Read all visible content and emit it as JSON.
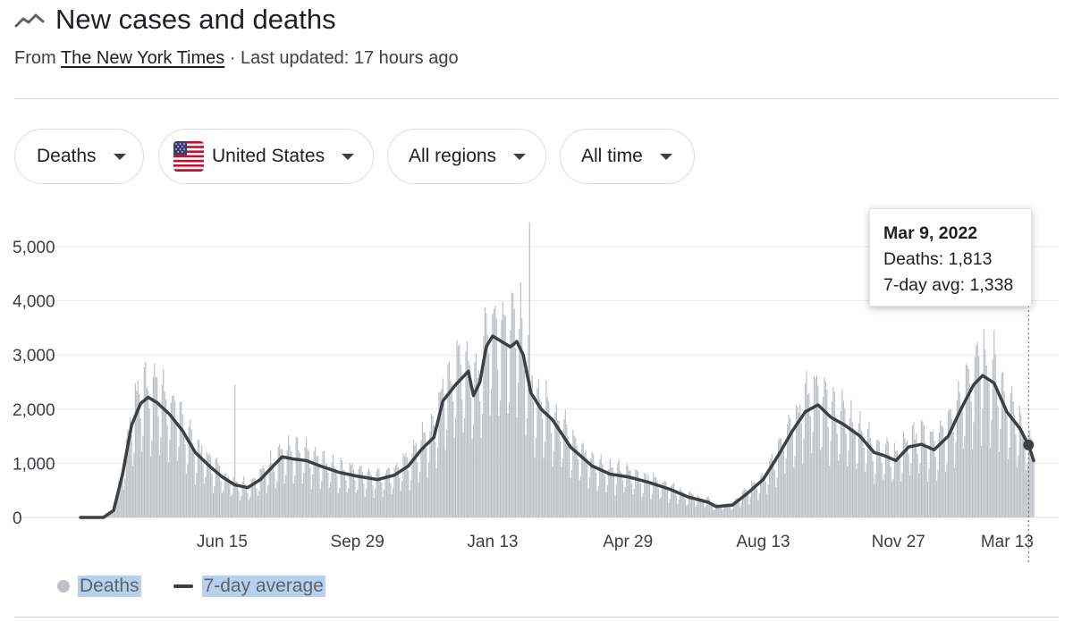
{
  "header": {
    "title": "New cases and deaths",
    "source_prefix": "From ",
    "source_name": "The New York Times",
    "updated": " · Last updated: 17 hours ago"
  },
  "filters": {
    "metric": "Deaths",
    "country": "United States",
    "region": "All regions",
    "range": "All time"
  },
  "tooltip": {
    "date": "Mar 9, 2022",
    "deaths": "Deaths: 1,813",
    "avg": "7-day avg: 1,338"
  },
  "legend": {
    "deaths": "Deaths",
    "avg": "7-day average"
  },
  "colors": {
    "bars": "#bdc1c6",
    "line": "#3c4043",
    "grid": "#e8eaed"
  },
  "chart_data": {
    "type": "bar",
    "series": [
      {
        "name": "Deaths",
        "type": "bar"
      },
      {
        "name": "7-day average",
        "type": "line"
      }
    ],
    "x_ticks": [
      "Jun 15",
      "Sep 29",
      "Jan 13",
      "Apr 29",
      "Aug 13",
      "Nov 27",
      "Mar 13"
    ],
    "y_ticks": [
      "0",
      "1,000",
      "2,000",
      "3,000",
      "4,000",
      "5,000"
    ],
    "ylim": [
      0,
      5500
    ],
    "x_start": "2020-02-25",
    "x_end": "2022-03-13",
    "grid": true,
    "highlight": {
      "date": "2022-03-09",
      "deaths": 1813,
      "avg": 1338
    },
    "avg_points": [
      [
        "2020-02-25",
        0
      ],
      [
        "2020-03-14",
        0
      ],
      [
        "2020-03-22",
        130
      ],
      [
        "2020-03-29",
        800
      ],
      [
        "2020-04-05",
        1700
      ],
      [
        "2020-04-12",
        2100
      ],
      [
        "2020-04-18",
        2220
      ],
      [
        "2020-04-25",
        2120
      ],
      [
        "2020-05-05",
        1900
      ],
      [
        "2020-05-15",
        1600
      ],
      [
        "2020-05-25",
        1200
      ],
      [
        "2020-06-05",
        950
      ],
      [
        "2020-06-15",
        750
      ],
      [
        "2020-06-25",
        600
      ],
      [
        "2020-07-05",
        550
      ],
      [
        "2020-07-15",
        700
      ],
      [
        "2020-07-25",
        950
      ],
      [
        "2020-08-01",
        1120
      ],
      [
        "2020-08-10",
        1080
      ],
      [
        "2020-08-20",
        1050
      ],
      [
        "2020-09-01",
        940
      ],
      [
        "2020-09-15",
        830
      ],
      [
        "2020-09-29",
        760
      ],
      [
        "2020-10-15",
        700
      ],
      [
        "2020-10-28",
        780
      ],
      [
        "2020-11-08",
        950
      ],
      [
        "2020-11-18",
        1250
      ],
      [
        "2020-11-28",
        1480
      ],
      [
        "2020-12-05",
        2150
      ],
      [
        "2020-12-15",
        2450
      ],
      [
        "2020-12-25",
        2700
      ],
      [
        "2020-12-29",
        2250
      ],
      [
        "2021-01-03",
        2500
      ],
      [
        "2021-01-08",
        3150
      ],
      [
        "2021-01-13",
        3350
      ],
      [
        "2021-01-20",
        3250
      ],
      [
        "2021-01-27",
        3150
      ],
      [
        "2021-02-01",
        3250
      ],
      [
        "2021-02-06",
        3000
      ],
      [
        "2021-02-12",
        2300
      ],
      [
        "2021-02-20",
        2000
      ],
      [
        "2021-03-01",
        1800
      ],
      [
        "2021-03-15",
        1300
      ],
      [
        "2021-04-01",
        950
      ],
      [
        "2021-04-15",
        800
      ],
      [
        "2021-04-29",
        750
      ],
      [
        "2021-05-15",
        650
      ],
      [
        "2021-06-01",
        520
      ],
      [
        "2021-06-15",
        380
      ],
      [
        "2021-07-01",
        280
      ],
      [
        "2021-07-07",
        200
      ],
      [
        "2021-07-20",
        230
      ],
      [
        "2021-08-01",
        450
      ],
      [
        "2021-08-13",
        700
      ],
      [
        "2021-08-25",
        1150
      ],
      [
        "2021-09-05",
        1600
      ],
      [
        "2021-09-15",
        1950
      ],
      [
        "2021-09-25",
        2080
      ],
      [
        "2021-10-05",
        1850
      ],
      [
        "2021-10-15",
        1720
      ],
      [
        "2021-10-28",
        1500
      ],
      [
        "2021-11-08",
        1200
      ],
      [
        "2021-11-15",
        1150
      ],
      [
        "2021-11-25",
        1050
      ],
      [
        "2021-12-05",
        1300
      ],
      [
        "2021-12-15",
        1350
      ],
      [
        "2021-12-25",
        1250
      ],
      [
        "2022-01-05",
        1500
      ],
      [
        "2022-01-15",
        2000
      ],
      [
        "2022-01-25",
        2450
      ],
      [
        "2022-02-01",
        2620
      ],
      [
        "2022-02-10",
        2480
      ],
      [
        "2022-02-20",
        1950
      ],
      [
        "2022-03-02",
        1650
      ],
      [
        "2022-03-09",
        1338
      ],
      [
        "2022-03-13",
        1050
      ]
    ]
  }
}
